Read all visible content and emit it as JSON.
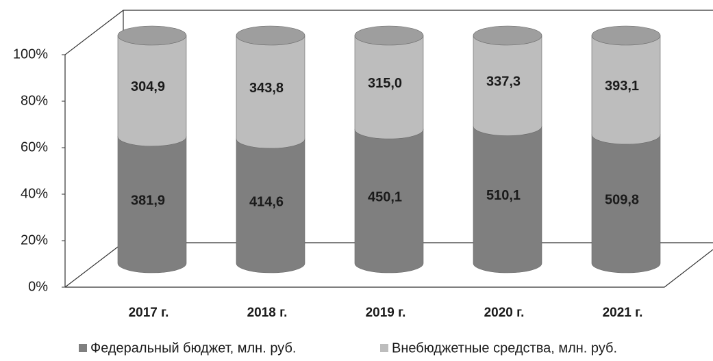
{
  "chart_data": {
    "type": "stacked_bar_100",
    "categories": [
      "2017 г.",
      "2018 г.",
      "2019 г.",
      "2020 г.",
      "2021 г."
    ],
    "series": [
      {
        "name": "Федеральный бюджет, млн. руб.",
        "color": "#7f7f7f",
        "values": [
          381.9,
          414.6,
          450.1,
          510.1,
          509.8
        ],
        "value_labels": [
          "381,9",
          "414,6",
          "450,1",
          "510,1",
          "509,8"
        ]
      },
      {
        "name": "Внебюджетные средства, млн. руб.",
        "color": "#bdbdbd",
        "values": [
          304.9,
          343.8,
          315.0,
          337.3,
          393.1
        ],
        "value_labels": [
          "304,9",
          "343,8",
          "315,0",
          "337,3",
          "393,1"
        ]
      }
    ],
    "ylim": [
      0,
      100
    ],
    "yticks": [
      {
        "value": 0,
        "label": "0%"
      },
      {
        "value": 20,
        "label": "20%"
      },
      {
        "value": 40,
        "label": "40%"
      },
      {
        "value": 60,
        "label": "60%"
      },
      {
        "value": 80,
        "label": "80%"
      },
      {
        "value": 100,
        "label": "100%"
      }
    ],
    "legend": "bottom"
  }
}
